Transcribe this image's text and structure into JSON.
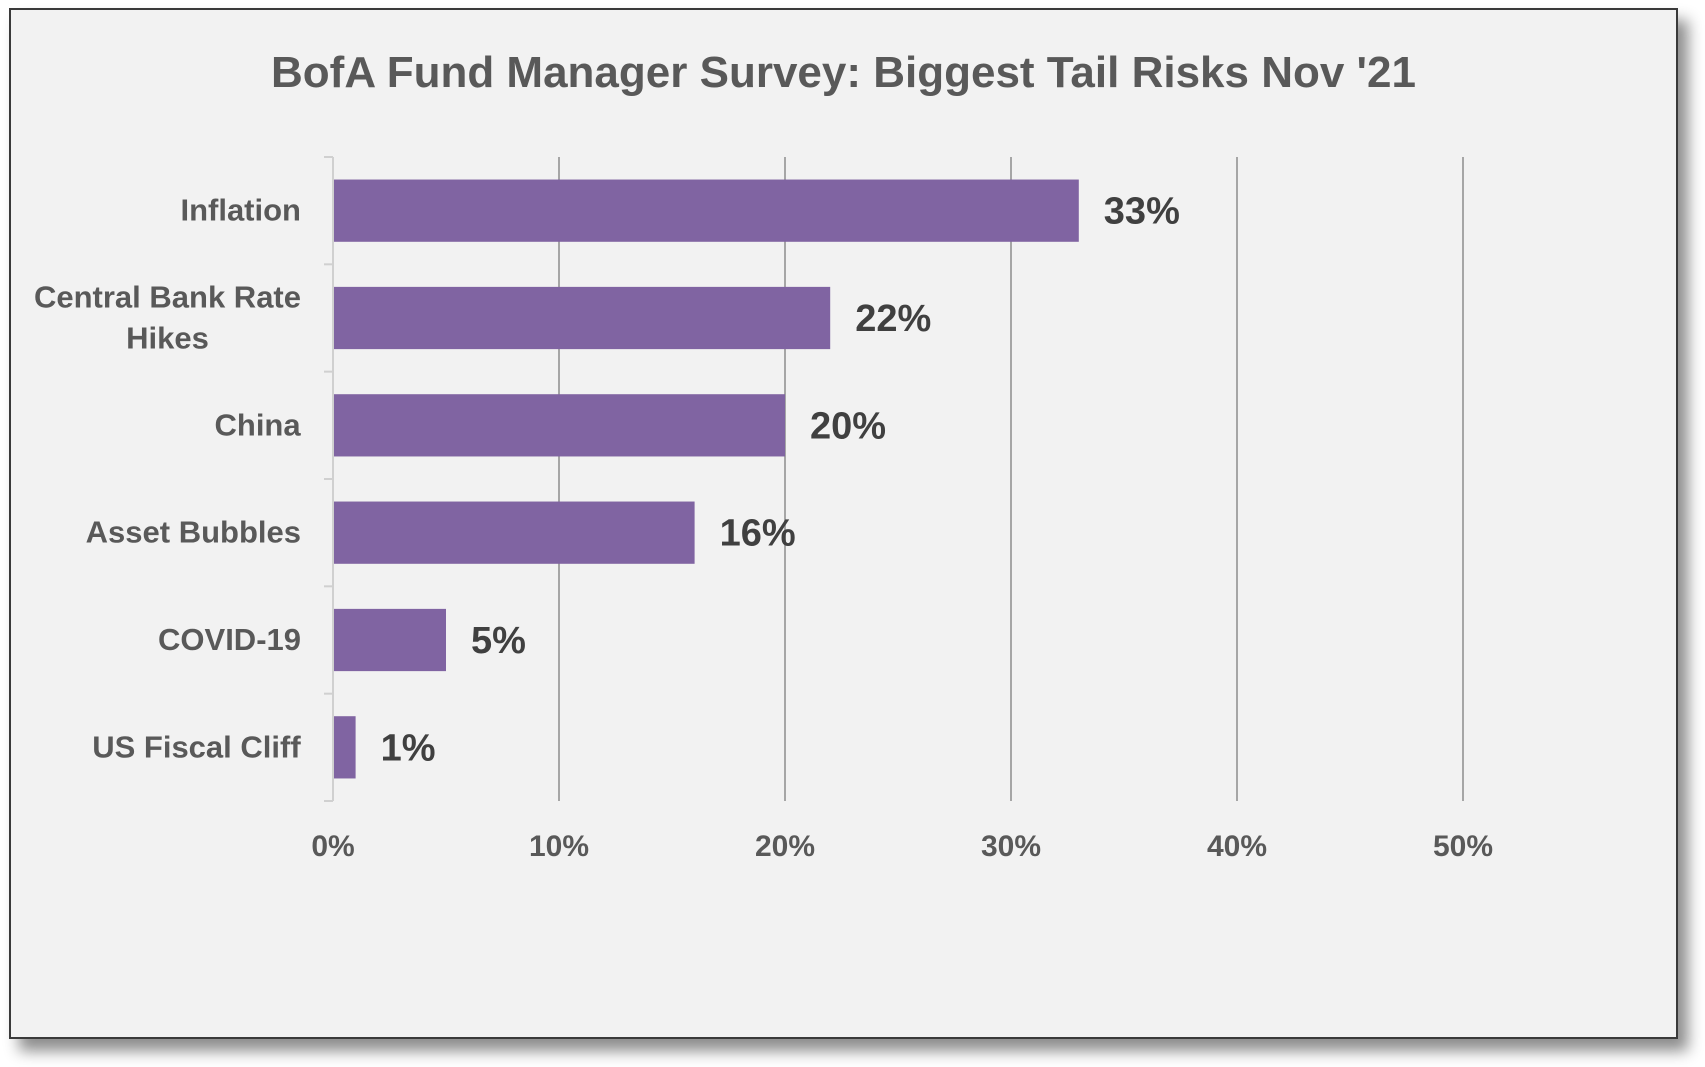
{
  "chart_data": {
    "type": "bar",
    "orientation": "horizontal",
    "title": "BofA Fund Manager Survey: Biggest Tail Risks Nov '21",
    "categories": [
      "Inflation",
      "Central Bank Rate Hikes",
      "China",
      "Asset Bubbles",
      "COVID-19",
      "US Fiscal Cliff"
    ],
    "category_label_lines": [
      [
        "Inflation"
      ],
      [
        "Central Bank Rate",
        "Hikes"
      ],
      [
        "China"
      ],
      [
        "Asset Bubbles"
      ],
      [
        "COVID-19"
      ],
      [
        "US Fiscal Cliff"
      ]
    ],
    "values": [
      33,
      22,
      20,
      16,
      5,
      1
    ],
    "data_labels": [
      "33%",
      "22%",
      "20%",
      "16%",
      "5%",
      "1%"
    ],
    "xlim": [
      0,
      50
    ],
    "x_ticks": [
      0,
      10,
      20,
      30,
      40,
      50
    ],
    "x_tick_labels": [
      "0%",
      "10%",
      "20%",
      "30%",
      "40%",
      "50%"
    ],
    "xlabel": "",
    "ylabel": "",
    "grid": "vertical",
    "legend": "none",
    "colors": {
      "bar": "#8064a2",
      "grid": "#a6a6a6",
      "background": "#f2f2f2"
    }
  }
}
